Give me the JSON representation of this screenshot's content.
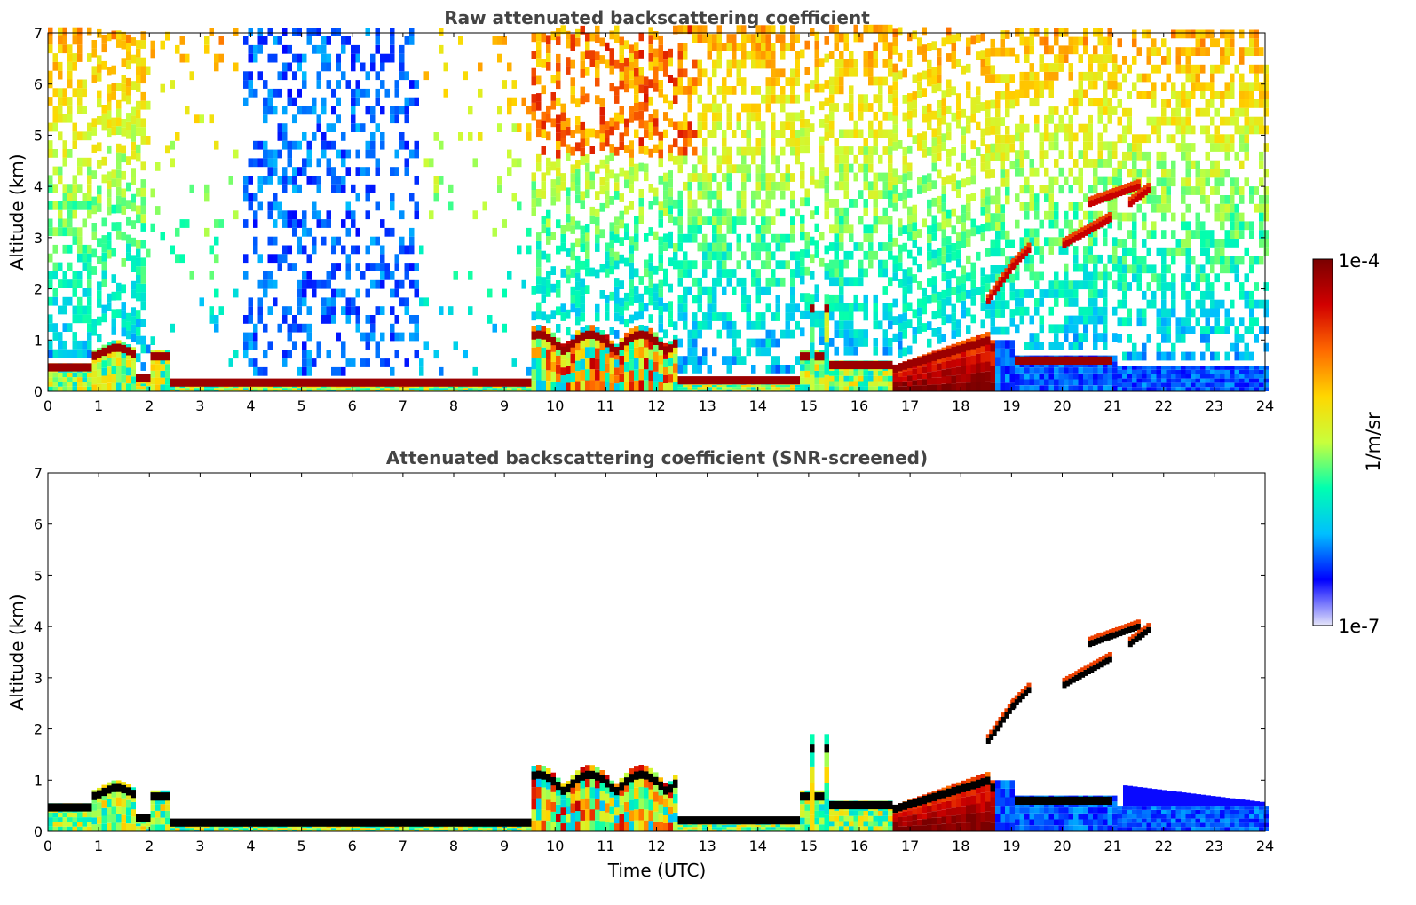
{
  "chart_data": [
    {
      "type": "heatmap",
      "title": "Raw attenuated backscattering coefficient",
      "xlabel": "",
      "ylabel": "Altitude (km)",
      "xlim": [
        0,
        24
      ],
      "ylim": [
        0,
        7
      ],
      "xticks": [
        "0",
        "1",
        "2",
        "3",
        "4",
        "5",
        "6",
        "7",
        "8",
        "9",
        "10",
        "11",
        "12",
        "13",
        "14",
        "15",
        "16",
        "17",
        "18",
        "19",
        "20",
        "21",
        "22",
        "23",
        "24"
      ],
      "yticks": [
        "0",
        "1",
        "2",
        "3",
        "4",
        "5",
        "6",
        "7"
      ],
      "grid": false,
      "background_noise": "speckled, increasing with altitude; daytime (9-12 UTC) yellow-orange aloft",
      "features": [
        {
          "name": "boundary layer aerosol",
          "t": [
            0,
            2.4
          ],
          "alt_top": 0.6,
          "level": "mid-high"
        },
        {
          "name": "surface layer",
          "t": [
            2.4,
            9.5
          ],
          "alt_top": 0.15,
          "level": "high"
        },
        {
          "name": "daytime boundary layer",
          "t": [
            9.5,
            12.5
          ],
          "alt_top": 1.4,
          "level": "high"
        },
        {
          "name": "surface layer",
          "t": [
            12.5,
            14.8
          ],
          "alt_top": 0.25,
          "level": "high"
        },
        {
          "name": "convective column",
          "t": [
            14.9,
            15.4
          ],
          "alt_top": 1.9,
          "level": "mid"
        },
        {
          "name": "evening boundary layer",
          "t": [
            15.4,
            18.6
          ],
          "alt_top": 1.1,
          "level": "very high"
        },
        {
          "name": "elevated cloud layer",
          "t": [
            18.5,
            21.7
          ],
          "alt_from": 1.7,
          "alt_to": 3.9,
          "level": "very high"
        },
        {
          "name": "residual layer",
          "t": [
            19.0,
            20.8
          ],
          "alt_top": 0.7,
          "level": "high"
        },
        {
          "name": "nocturnal layer",
          "t": [
            18.6,
            24
          ],
          "alt_top": 0.5,
          "level": "low"
        }
      ]
    },
    {
      "type": "heatmap",
      "title": "Attenuated backscattering coefficient (SNR-screened)",
      "xlabel": "Time (UTC)",
      "ylabel": "Altitude (km)",
      "xlim": [
        0,
        24
      ],
      "ylim": [
        0,
        7
      ],
      "xticks": [
        "0",
        "1",
        "2",
        "3",
        "4",
        "5",
        "6",
        "7",
        "8",
        "9",
        "10",
        "11",
        "12",
        "13",
        "14",
        "15",
        "16",
        "17",
        "18",
        "19",
        "20",
        "21",
        "22",
        "23",
        "24"
      ],
      "yticks": [
        "0",
        "1",
        "2",
        "3",
        "4",
        "5",
        "6",
        "7"
      ],
      "grid": false,
      "background_noise": "screened out (white)"
    }
  ],
  "colorbar": {
    "label": "1/m/sr",
    "max_label": "1e-4",
    "min_label": "1e-7",
    "colormap": "jet",
    "colors": [
      "#e6e6fa",
      "#0000ff",
      "#00bfff",
      "#00ffb0",
      "#c8ff3c",
      "#ffd700",
      "#ff6a00",
      "#d20000",
      "#7a0000"
    ]
  }
}
